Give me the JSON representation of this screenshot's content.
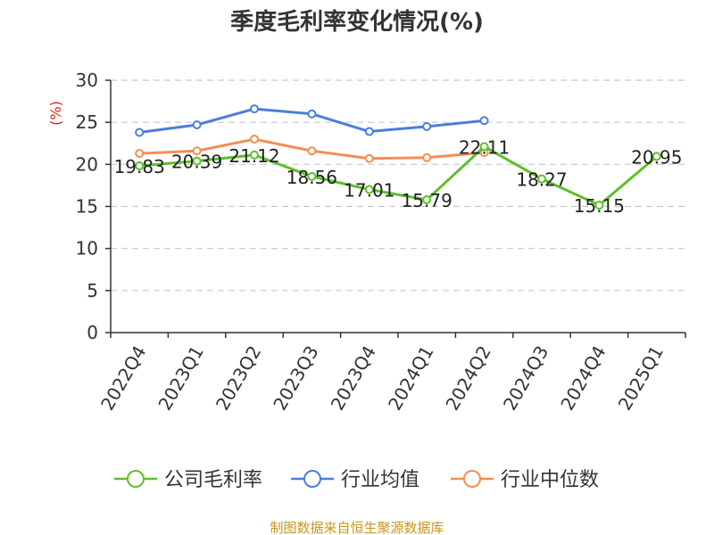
{
  "chart_data": {
    "type": "line",
    "title": "季度毛利率变化情况(%)",
    "ylabel": "(%)",
    "xlabel": "",
    "categories": [
      "2022Q4",
      "2023Q1",
      "2023Q2",
      "2023Q3",
      "2023Q4",
      "2024Q1",
      "2024Q2",
      "2024Q3",
      "2024Q4",
      "2025Q1"
    ],
    "ylim": [
      0,
      30
    ],
    "yticks": [
      0,
      5,
      10,
      15,
      20,
      25,
      30
    ],
    "grid": true,
    "legend_position": "bottom",
    "series": [
      {
        "name": "公司毛利率",
        "color": "#5cc02b",
        "values": [
          19.83,
          20.39,
          21.12,
          18.56,
          17.01,
          15.79,
          22.11,
          18.27,
          15.15,
          20.95
        ],
        "labels": [
          "19.83",
          "20.39",
          "21.12",
          "18.56",
          "17.01",
          "15.79",
          "22.11",
          "18.27",
          "15.15",
          "20.95"
        ]
      },
      {
        "name": "行业均值",
        "color": "#4a7fd9",
        "values": [
          23.8,
          24.7,
          26.6,
          26.0,
          23.9,
          24.5,
          25.2,
          null,
          null,
          null
        ]
      },
      {
        "name": "行业中位数",
        "color": "#f58d54",
        "values": [
          21.3,
          21.6,
          23.0,
          21.6,
          20.7,
          20.8,
          21.4,
          null,
          null,
          null
        ]
      }
    ],
    "source": "制图数据来自恒生聚源数据库"
  }
}
